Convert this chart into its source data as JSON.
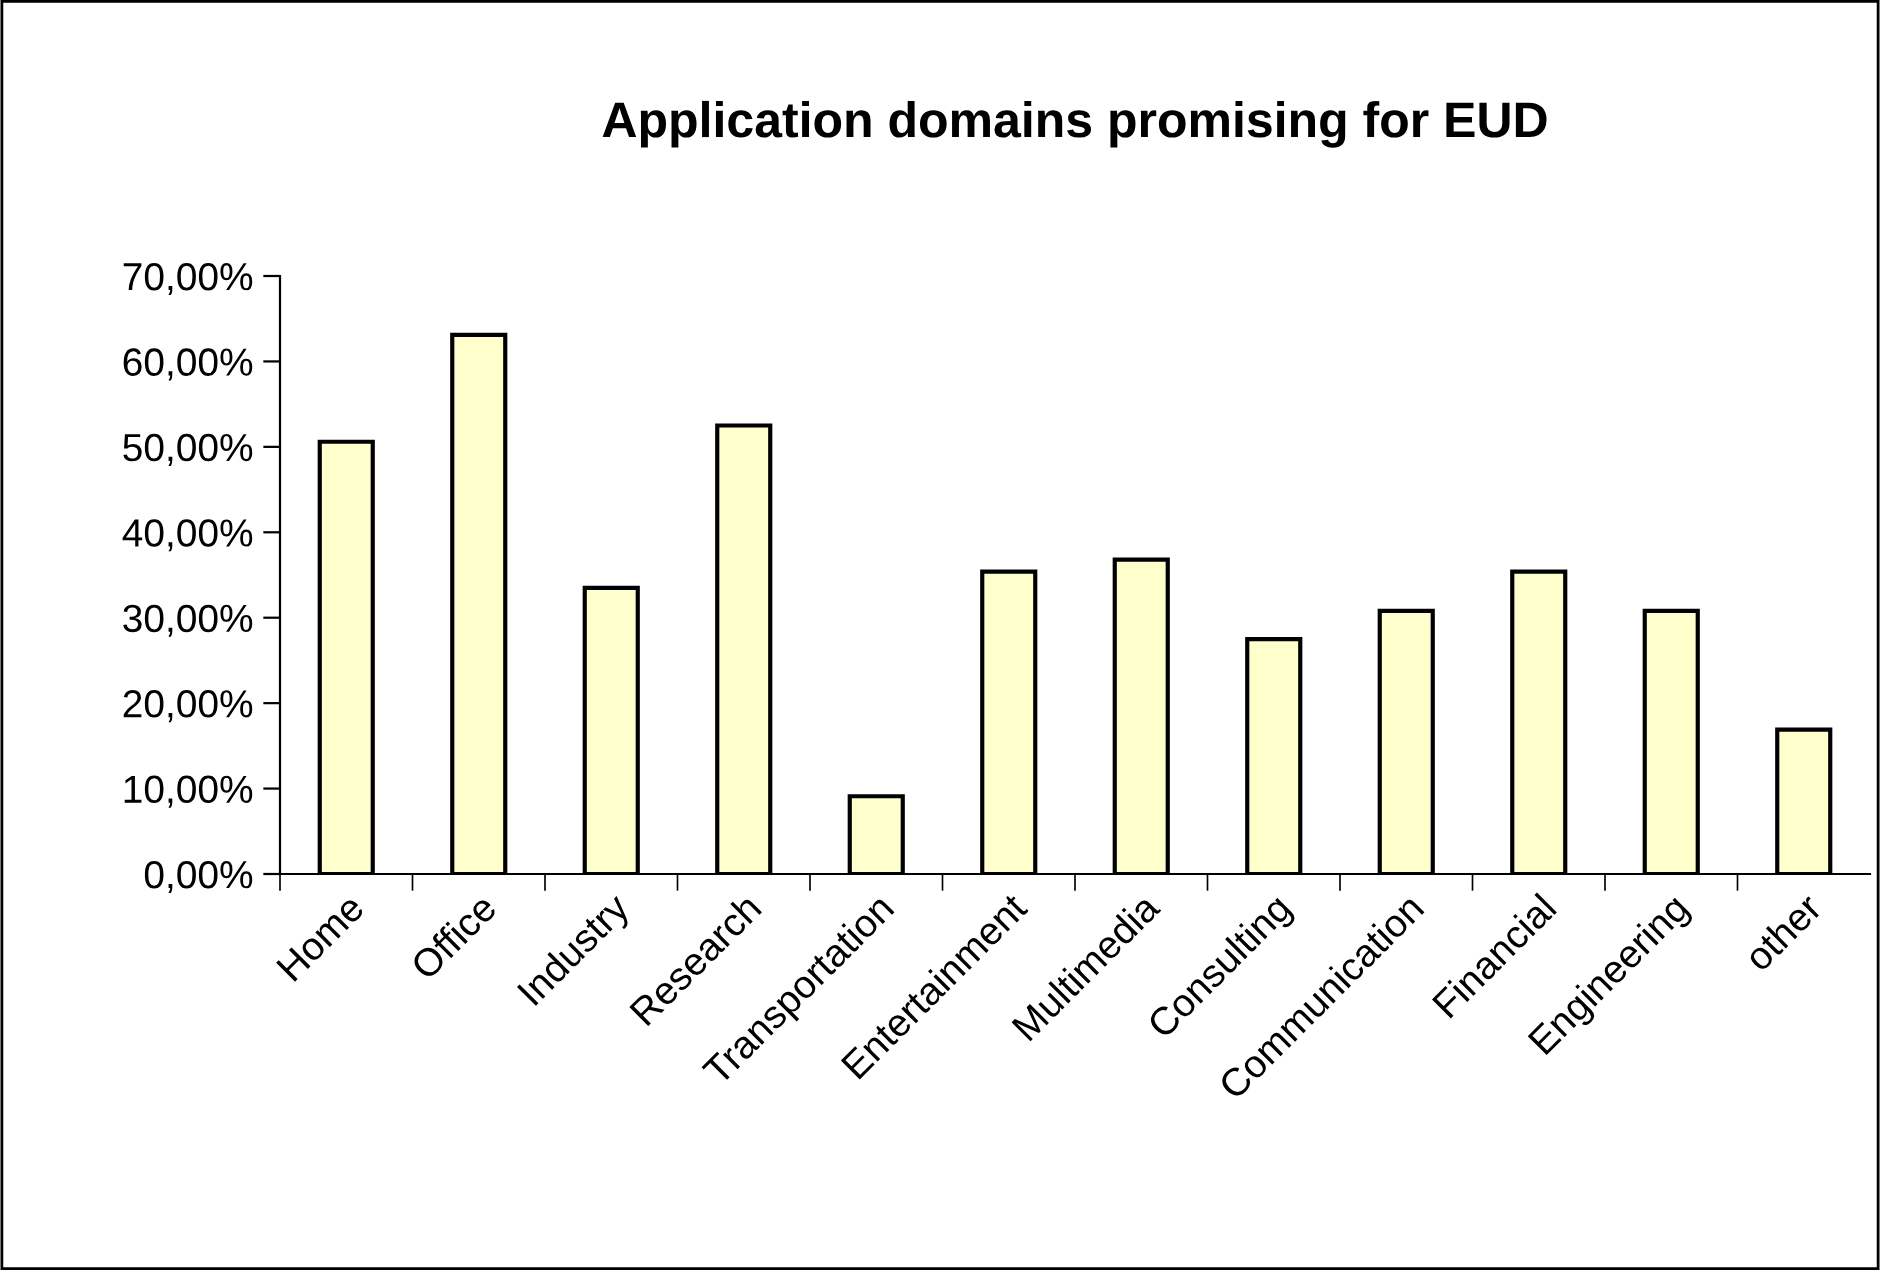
{
  "chart_data": {
    "type": "bar",
    "title": "Application domains promising for EUD",
    "categories": [
      "Home",
      "Office",
      "Industry",
      "Research",
      "Transportation",
      "Entertainment",
      "Multimedia",
      "Consulting",
      "Communication",
      "Financial",
      "Engineering",
      "other"
    ],
    "values": [
      50.6,
      63.1,
      33.5,
      52.5,
      9.1,
      35.4,
      36.8,
      27.5,
      30.8,
      35.4,
      30.8,
      16.9
    ],
    "color": "#ffffcc",
    "ylim": [
      0,
      70
    ],
    "yticks": [
      {
        "value": 0,
        "label": "0,00%"
      },
      {
        "value": 10,
        "label": "10,00%"
      },
      {
        "value": 20,
        "label": "20,00%"
      },
      {
        "value": 30,
        "label": "30,00%"
      },
      {
        "value": 40,
        "label": "40,00%"
      },
      {
        "value": 50,
        "label": "50,00%"
      },
      {
        "value": 60,
        "label": "60,00%"
      },
      {
        "value": 70,
        "label": "70,00%"
      }
    ],
    "grid": false
  }
}
